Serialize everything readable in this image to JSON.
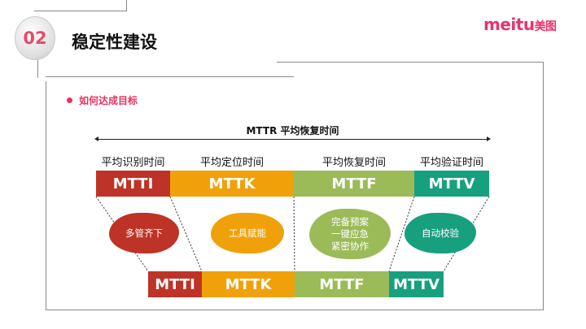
{
  "header": {
    "number": "02",
    "title": "稳定性建设",
    "logo": "meitu",
    "logo_cn": "美图"
  },
  "section": {
    "bullet": "如何达成目标"
  },
  "diagram": {
    "mttr_label": "MTTR 平均恢复时间",
    "phases": [
      {
        "label": "平均识别时间",
        "code": "MTTI",
        "color": "#be3327",
        "cloud": "多管齐下"
      },
      {
        "label": "平均定位时间",
        "code": "MTTK",
        "color": "#f0a10a",
        "cloud": "工具赋能"
      },
      {
        "label": "平均恢复时间",
        "code": "MTTF",
        "color": "#9bbb59",
        "cloud": "完备预案\n一键应急\n紧密协作"
      },
      {
        "label": "平均验证时间",
        "code": "MTTV",
        "color": "#17a07e",
        "cloud": "自动校验"
      }
    ]
  }
}
